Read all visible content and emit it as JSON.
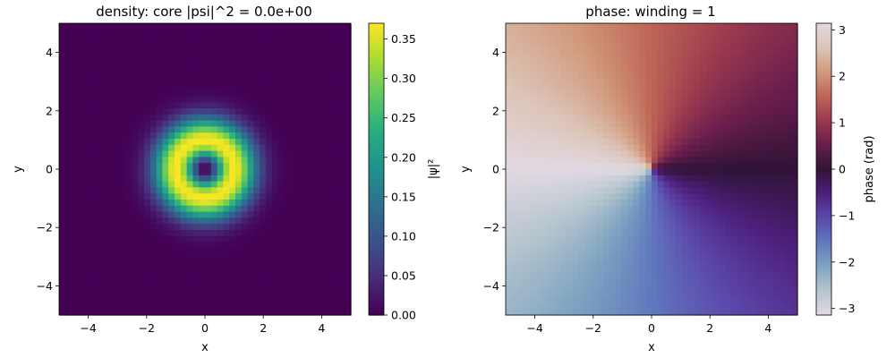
{
  "chart_data": [
    {
      "type": "heatmap",
      "title": "density: core |psi|^2 = 0.0e+00",
      "xlabel": "x",
      "ylabel": "y",
      "xlim": [
        -5,
        5
      ],
      "ylim": [
        -5,
        5
      ],
      "xticks": [
        "−4",
        "−2",
        "0",
        "2",
        "4"
      ],
      "yticks": [
        "−4",
        "−2",
        "0",
        "2",
        "4"
      ],
      "grid_n": 48,
      "field": "density",
      "colormap": "viridis",
      "colorbar": {
        "label": "|ψ|²",
        "range": [
          0,
          0.37
        ],
        "ticks": [
          "0.00",
          "0.05",
          "0.10",
          "0.15",
          "0.20",
          "0.25",
          "0.30",
          "0.35"
        ]
      }
    },
    {
      "type": "heatmap",
      "title": "phase: winding = 1",
      "xlabel": "x",
      "ylabel": "y",
      "xlim": [
        -5,
        5
      ],
      "ylim": [
        -5,
        5
      ],
      "xticks": [
        "−4",
        "−2",
        "0",
        "2",
        "4"
      ],
      "yticks": [
        "−4",
        "−2",
        "0",
        "2",
        "4"
      ],
      "grid_n": 48,
      "field": "phase",
      "winding": 1,
      "colormap": "twilight",
      "colorbar": {
        "label": "phase (rad)",
        "range": [
          -3.14159,
          3.14159
        ],
        "ticks": [
          "−3",
          "−2",
          "−1",
          "0",
          "1",
          "2",
          "3"
        ]
      }
    }
  ]
}
